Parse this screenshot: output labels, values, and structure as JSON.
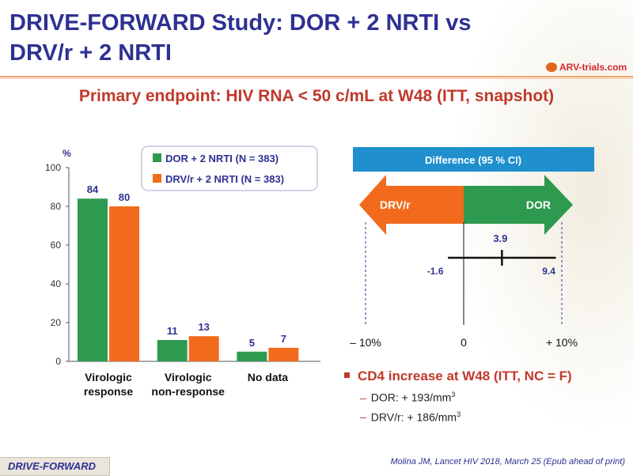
{
  "title": "DRIVE-FORWARD Study: DOR + 2 NRTI vs DRV/r + 2 NRTI",
  "logo": "ARV-trials.com",
  "subtitle": "Primary endpoint: HIV RNA < 50 c/mL at W48 (ITT, snapshot)",
  "chart_data": [
    {
      "type": "bar",
      "ylabel": "%",
      "ylim": [
        0,
        100
      ],
      "yticks": [
        "0",
        "20",
        "40",
        "60",
        "80",
        "100"
      ],
      "categories": [
        "Virologic response",
        "Virologic non-response",
        "No data"
      ],
      "category_lines": [
        [
          "Virologic",
          "response"
        ],
        [
          "Virologic",
          "non-response"
        ],
        [
          "No data"
        ]
      ],
      "series": [
        {
          "name": "DOR + 2 NRTI (N = 383)",
          "color": "#2e9a4f",
          "values": [
            84,
            11,
            5
          ]
        },
        {
          "name": "DRV/r + 2 NRTI (N = 383)",
          "color": "#f26b1d",
          "values": [
            80,
            13,
            7
          ]
        }
      ],
      "legend": "top-right"
    },
    {
      "type": "forest",
      "title": "Difference (95 % CI)",
      "arrow_left": "DRV/r",
      "arrow_right": "DOR",
      "xlim": [
        -10,
        10
      ],
      "xticks": [
        "– 10%",
        "0",
        "+ 10%"
      ],
      "estimate": 3.9,
      "ci_low": -1.6,
      "ci_high": 9.4,
      "estimate_label": "3.9",
      "ci_low_label": "-1.6",
      "ci_high_label": "9.4"
    }
  ],
  "cd4": {
    "heading": "CD4 increase at W48 (ITT, NC = F)",
    "items": [
      {
        "label": "DOR: + 193/mm",
        "sup": "3"
      },
      {
        "label": "DRV/r: + 186/mm",
        "sup": "3"
      }
    ]
  },
  "footer": {
    "tag": "DRIVE-FORWARD",
    "citation": "Molina JM, Lancet HIV 2018, March 25 (Epub ahead of print)"
  }
}
